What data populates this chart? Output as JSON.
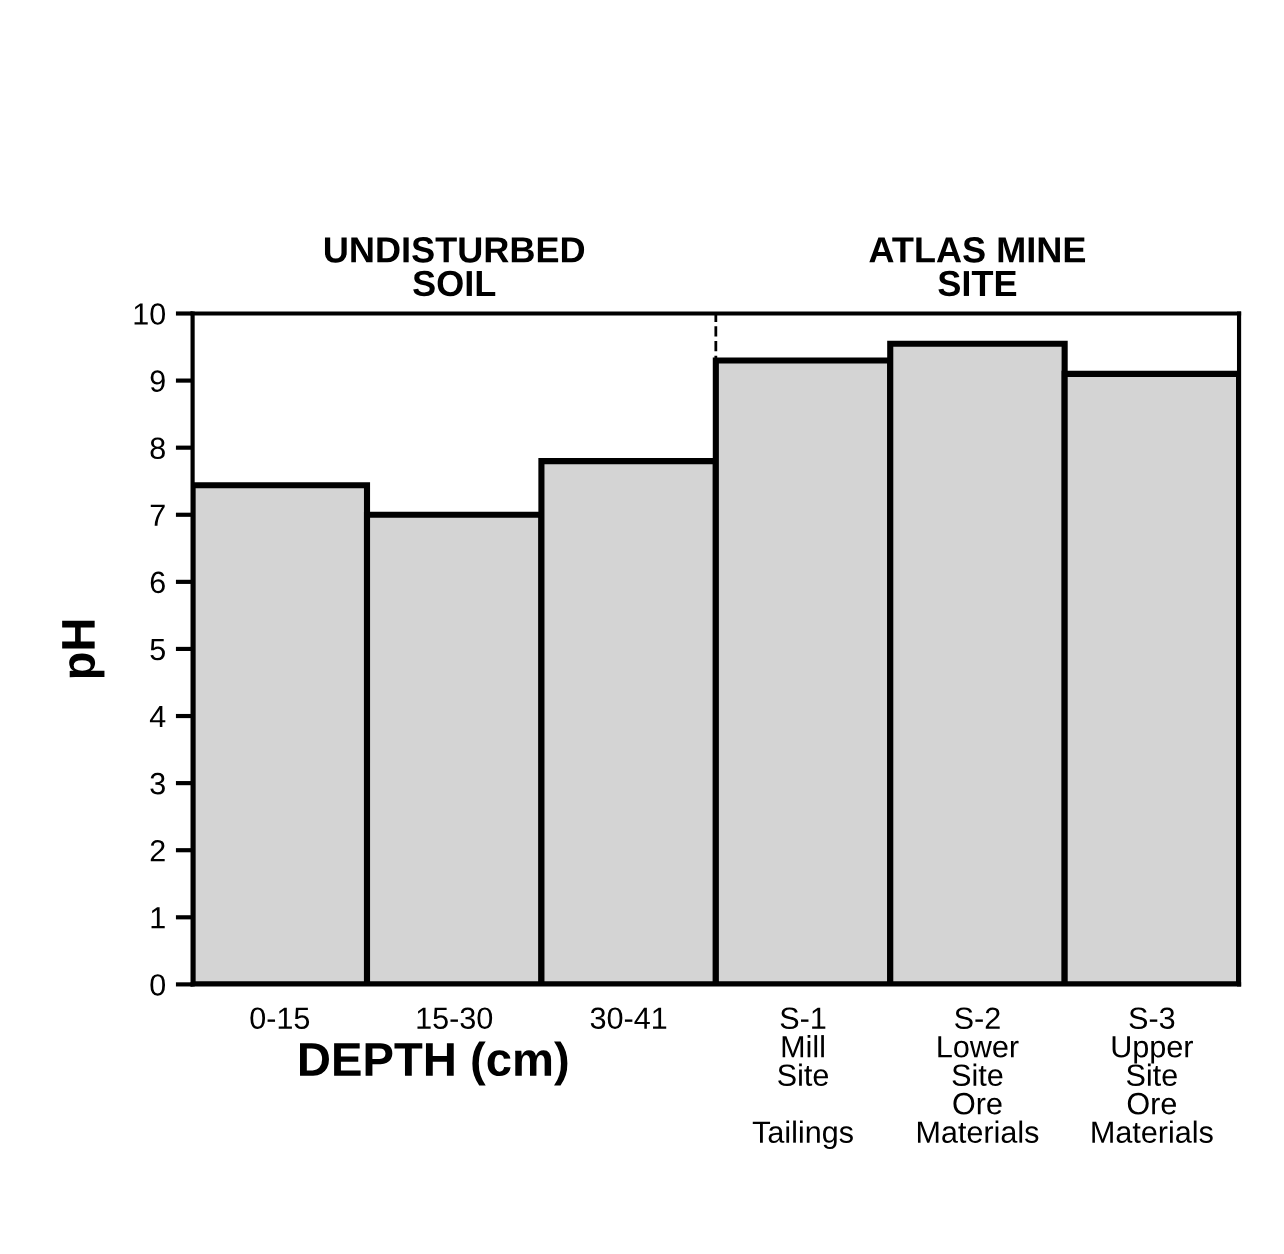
{
  "chart_data": {
    "type": "bar",
    "categories": [
      "0-15",
      "15-30",
      "30-41",
      "S-1\nMill\nSite\n\nTailings",
      "S-2\nLower\nSite\nOre\nMaterials",
      "S-3\nUpper\nSite\nOre\nMaterials"
    ],
    "values": [
      7.44,
      7.0,
      7.8,
      9.3,
      9.55,
      9.1
    ],
    "color": "#d4d4d4",
    "xlabel": "DEPTH (cm)",
    "ylabel": "pH",
    "ylim": [
      0,
      10
    ],
    "yticks": [
      0,
      1,
      2,
      3,
      4,
      5,
      6,
      7,
      8,
      9,
      10
    ],
    "annotations": [
      "UNDISTURBED\nSOIL",
      "ATLAS MINE\nSITE"
    ],
    "grid": false,
    "legend": false
  }
}
